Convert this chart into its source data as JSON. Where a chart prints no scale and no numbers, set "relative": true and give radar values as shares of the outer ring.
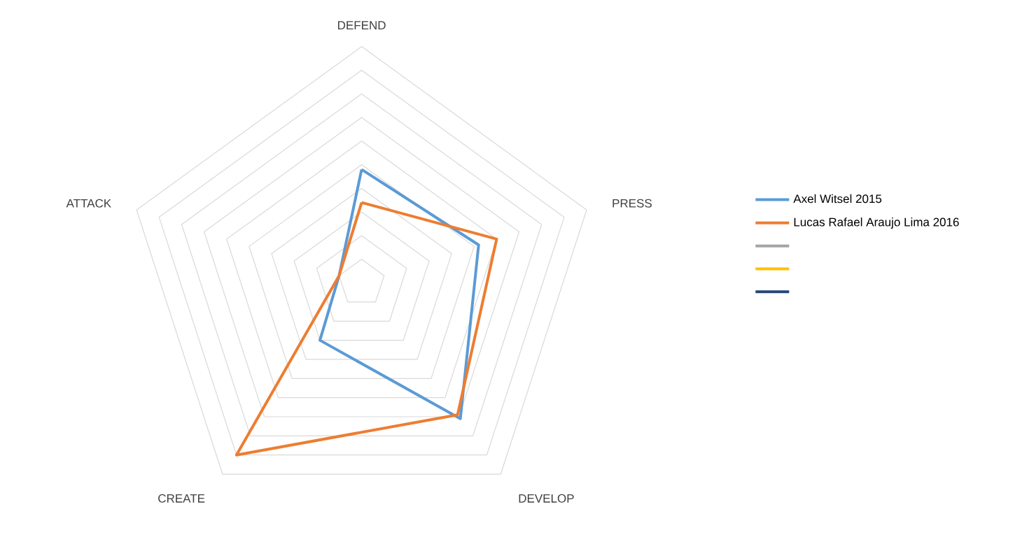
{
  "chart_data": {
    "type": "radar",
    "relative": true,
    "grid": true,
    "legend": "right",
    "categories": [
      "DEFEND",
      "PRESS",
      "DEVELOP",
      "CREATE",
      "ATTACK"
    ],
    "series": [
      {
        "name": "Axel Witsel 2015",
        "color": "#5b9bd5",
        "values": [
          0.48,
          0.52,
          0.71,
          0.3,
          0.1
        ]
      },
      {
        "name": "Lucas Rafael Araujo Lima 2016",
        "color": "#ed7d31",
        "values": [
          0.34,
          0.6,
          0.69,
          0.9,
          0.1
        ]
      },
      {
        "color": "#a5a5a5",
        "values": [
          null,
          null,
          null,
          null,
          null
        ]
      },
      {
        "color": "#ffc000",
        "values": [
          null,
          null,
          null,
          null,
          null
        ]
      },
      {
        "color": "#264478",
        "values": [
          null,
          null,
          null,
          null,
          null
        ]
      }
    ]
  }
}
